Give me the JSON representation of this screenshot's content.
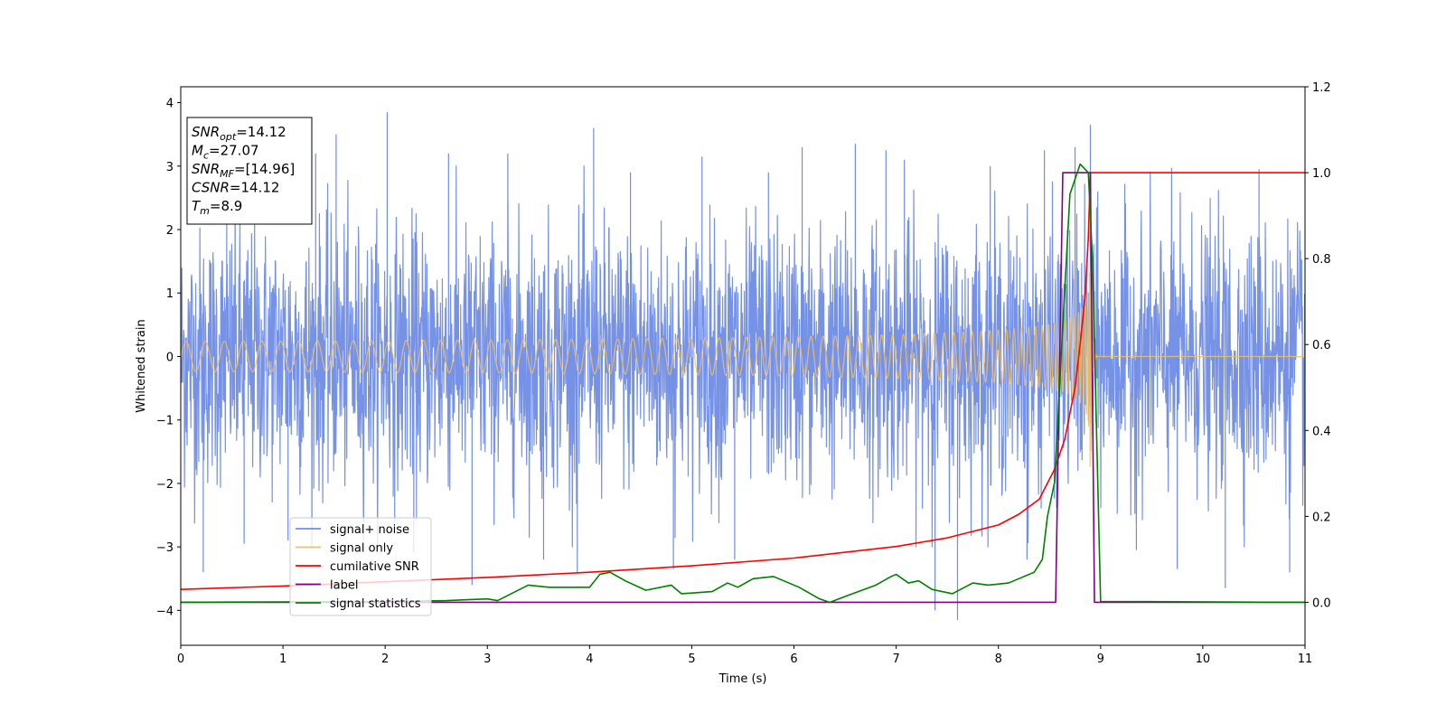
{
  "chart_data": {
    "type": "line",
    "xlabel": "Time (s)",
    "ylabel": "Whitened strain",
    "xlim": [
      0,
      11
    ],
    "ylim": [
      -4.55,
      4.25
    ],
    "y2lim": [
      -0.1,
      1.2
    ],
    "x_ticks": [
      0,
      1,
      2,
      3,
      4,
      5,
      6,
      7,
      8,
      9,
      10,
      11
    ],
    "y_ticks": [
      -4,
      -3,
      -2,
      -1,
      0,
      1,
      2,
      3,
      4
    ],
    "y_tick_labels": [
      "−4",
      "−3",
      "−2",
      "−1",
      "0",
      "1",
      "2",
      "3",
      "4"
    ],
    "y2_ticks": [
      0.0,
      0.2,
      0.4,
      0.6,
      0.8,
      1.0,
      1.2
    ],
    "y2_tick_labels": [
      "0.0",
      "0.2",
      "0.4",
      "0.6",
      "0.8",
      "1.0",
      "1.2"
    ],
    "legend_position": "lower-left",
    "info_box": {
      "position": "upper-left",
      "lines": [
        {
          "sym": "SNR",
          "sub": "opt",
          "val": "=14.12"
        },
        {
          "sym": "M",
          "sub": "c",
          "val": "=27.07"
        },
        {
          "sym": "SNR",
          "sub": "MF",
          "val": "=[14.96]"
        },
        {
          "sym": "CSNR",
          "sub": "",
          "val": "=14.12"
        },
        {
          "sym": "T",
          "sub": "m",
          "val": "=8.9"
        }
      ]
    },
    "series": [
      {
        "name": "signal+ noise",
        "axis": "left",
        "color": "#6f8ce6",
        "kind": "noise",
        "sigma": 1.0,
        "spikes": [
          {
            "x": 0.22,
            "y": -3.4
          },
          {
            "x": 0.45,
            "y": 2.9
          },
          {
            "x": 0.62,
            "y": -2.95
          },
          {
            "x": 1.05,
            "y": -2.9
          },
          {
            "x": 1.32,
            "y": 3.2
          },
          {
            "x": 1.52,
            "y": 3.5
          },
          {
            "x": 2.02,
            "y": 3.85
          },
          {
            "x": 2.28,
            "y": -3.1
          },
          {
            "x": 2.62,
            "y": 3.2
          },
          {
            "x": 2.85,
            "y": -3.6
          },
          {
            "x": 3.2,
            "y": 3.2
          },
          {
            "x": 3.55,
            "y": -3.2
          },
          {
            "x": 3.88,
            "y": -3.4
          },
          {
            "x": 4.04,
            "y": 3.6
          },
          {
            "x": 4.4,
            "y": 2.9
          },
          {
            "x": 4.82,
            "y": -3.35
          },
          {
            "x": 5.1,
            "y": 3.15
          },
          {
            "x": 5.42,
            "y": -3.2
          },
          {
            "x": 5.75,
            "y": 2.9
          },
          {
            "x": 6.08,
            "y": 3.3
          },
          {
            "x": 6.6,
            "y": 3.35
          },
          {
            "x": 6.9,
            "y": 3.25
          },
          {
            "x": 7.08,
            "y": 3.1
          },
          {
            "x": 7.38,
            "y": -4.0
          },
          {
            "x": 7.6,
            "y": -4.15
          },
          {
            "x": 7.92,
            "y": 3.0
          },
          {
            "x": 8.28,
            "y": -3.2
          },
          {
            "x": 8.45,
            "y": 3.25
          },
          {
            "x": 8.75,
            "y": 3.3
          },
          {
            "x": 8.9,
            "y": 3.65
          },
          {
            "x": 9.35,
            "y": -3.05
          },
          {
            "x": 9.75,
            "y": -3.35
          },
          {
            "x": 10.22,
            "y": -3.65
          },
          {
            "x": 10.55,
            "y": 2.95
          },
          {
            "x": 10.85,
            "y": -3.4
          }
        ]
      },
      {
        "name": "signal only",
        "axis": "left",
        "color": "#f2c05f",
        "kind": "chirp",
        "merger_time": 8.9,
        "amplitude_near_merger": 2.9
      },
      {
        "name": "cumilative SNR",
        "axis": "right",
        "color": "#ff0000",
        "x": [
          0,
          1,
          2,
          3,
          4,
          5,
          6,
          7,
          7.5,
          8.0,
          8.2,
          8.4,
          8.55,
          8.65,
          8.75,
          8.8,
          8.85,
          8.88,
          8.9,
          11
        ],
        "y": [
          0.03,
          0.038,
          0.048,
          0.058,
          0.07,
          0.085,
          0.103,
          0.13,
          0.15,
          0.18,
          0.205,
          0.24,
          0.31,
          0.38,
          0.5,
          0.6,
          0.72,
          0.85,
          1.0,
          1.0
        ]
      },
      {
        "name": "label",
        "axis": "right",
        "color": "#800080",
        "x": [
          0,
          8.56,
          8.63,
          8.9,
          8.94,
          11
        ],
        "y": [
          0,
          0,
          1,
          1,
          0,
          0
        ]
      },
      {
        "name": "signal statistics",
        "axis": "right",
        "color": "#008000",
        "x": [
          0,
          1,
          2,
          2.6,
          3.0,
          3.1,
          3.4,
          3.6,
          3.8,
          4.0,
          4.1,
          4.2,
          4.35,
          4.55,
          4.8,
          4.9,
          5.2,
          5.35,
          5.45,
          5.6,
          5.8,
          6.05,
          6.25,
          6.35,
          6.55,
          6.8,
          6.95,
          7.0,
          7.12,
          7.22,
          7.35,
          7.45,
          7.55,
          7.75,
          7.9,
          8.1,
          8.2,
          8.35,
          8.43,
          8.48,
          8.55,
          8.62,
          8.7,
          8.8,
          8.88,
          8.92,
          9.0,
          11
        ],
        "y": [
          0,
          0.001,
          0.002,
          0.004,
          0.008,
          0.004,
          0.04,
          0.035,
          0.035,
          0.035,
          0.065,
          0.07,
          0.05,
          0.028,
          0.04,
          0.02,
          0.025,
          0.045,
          0.035,
          0.055,
          0.06,
          0.035,
          0.008,
          0.0,
          0.018,
          0.04,
          0.06,
          0.065,
          0.045,
          0.05,
          0.03,
          0.025,
          0.02,
          0.045,
          0.04,
          0.045,
          0.055,
          0.07,
          0.1,
          0.2,
          0.28,
          0.6,
          0.95,
          1.02,
          1.0,
          0.8,
          0.002,
          0.0
        ]
      }
    ]
  }
}
